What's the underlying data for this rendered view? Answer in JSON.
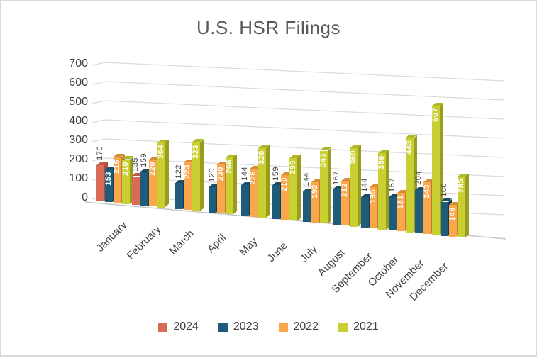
{
  "title": "U.S. HSR Filings",
  "chart_data": {
    "type": "bar",
    "subtype": "3d_clustered_column",
    "title": "U.S. HSR Filings",
    "categories": [
      "January",
      "February",
      "March",
      "April",
      "May",
      "June",
      "July",
      "August",
      "September",
      "October",
      "November",
      "December"
    ],
    "series": [
      {
        "name": "2024",
        "color": "#D96A53",
        "side_color": "#A94E3B",
        "top_color": "#C25843",
        "values": [
          170,
          135,
          null,
          null,
          null,
          null,
          null,
          null,
          null,
          null,
          null,
          null
        ],
        "labels_inside": [
          false,
          false,
          false,
          false,
          false,
          false,
          false,
          false,
          false,
          false,
          false,
          false
        ]
      },
      {
        "name": "2023",
        "color": "#1F5B7B",
        "side_color": "#143C52",
        "top_color": "#194C67",
        "values": [
          153,
          159,
          122,
          120,
          144,
          159,
          144,
          167,
          144,
          157,
          204,
          160
        ],
        "labels_inside": [
          true,
          false,
          false,
          false,
          false,
          false,
          false,
          false,
          false,
          false,
          false,
          false
        ]
      },
      {
        "name": "2022",
        "color": "#FAA64B",
        "side_color": "#BF7A2B",
        "top_color": "#D98C38",
        "values": [
          216,
          220,
          223,
          230,
          226,
          210,
          192,
          212,
          195,
          181,
          243,
          148
        ],
        "labels_inside": [
          true,
          true,
          true,
          true,
          true,
          true,
          true,
          true,
          true,
          true,
          true,
          true
        ]
      },
      {
        "name": "2021",
        "color": "#C9CE31",
        "side_color": "#999D1F",
        "top_color": "#B2B629",
        "values": [
          210,
          304,
          323,
          266,
          326,
          295,
          343,
          369,
          359,
          443,
          607,
          285
        ],
        "labels_inside": [
          true,
          true,
          true,
          true,
          true,
          true,
          true,
          true,
          true,
          true,
          true,
          true
        ]
      }
    ],
    "yticks": [
      0,
      100,
      200,
      300,
      400,
      500,
      600,
      700
    ],
    "ylim": [
      0,
      700
    ],
    "gridlines": true,
    "legend_position": "bottom"
  },
  "colors": {
    "grid": "#D9D9D9",
    "floor": "#C6C6C6",
    "axis_text": "#404040",
    "title_text": "#595959",
    "label_dark": "#3F3F3F",
    "label_light": "#FFFFFF",
    "frame_border": "#D9D9D9",
    "background": "#FFFFFF"
  }
}
